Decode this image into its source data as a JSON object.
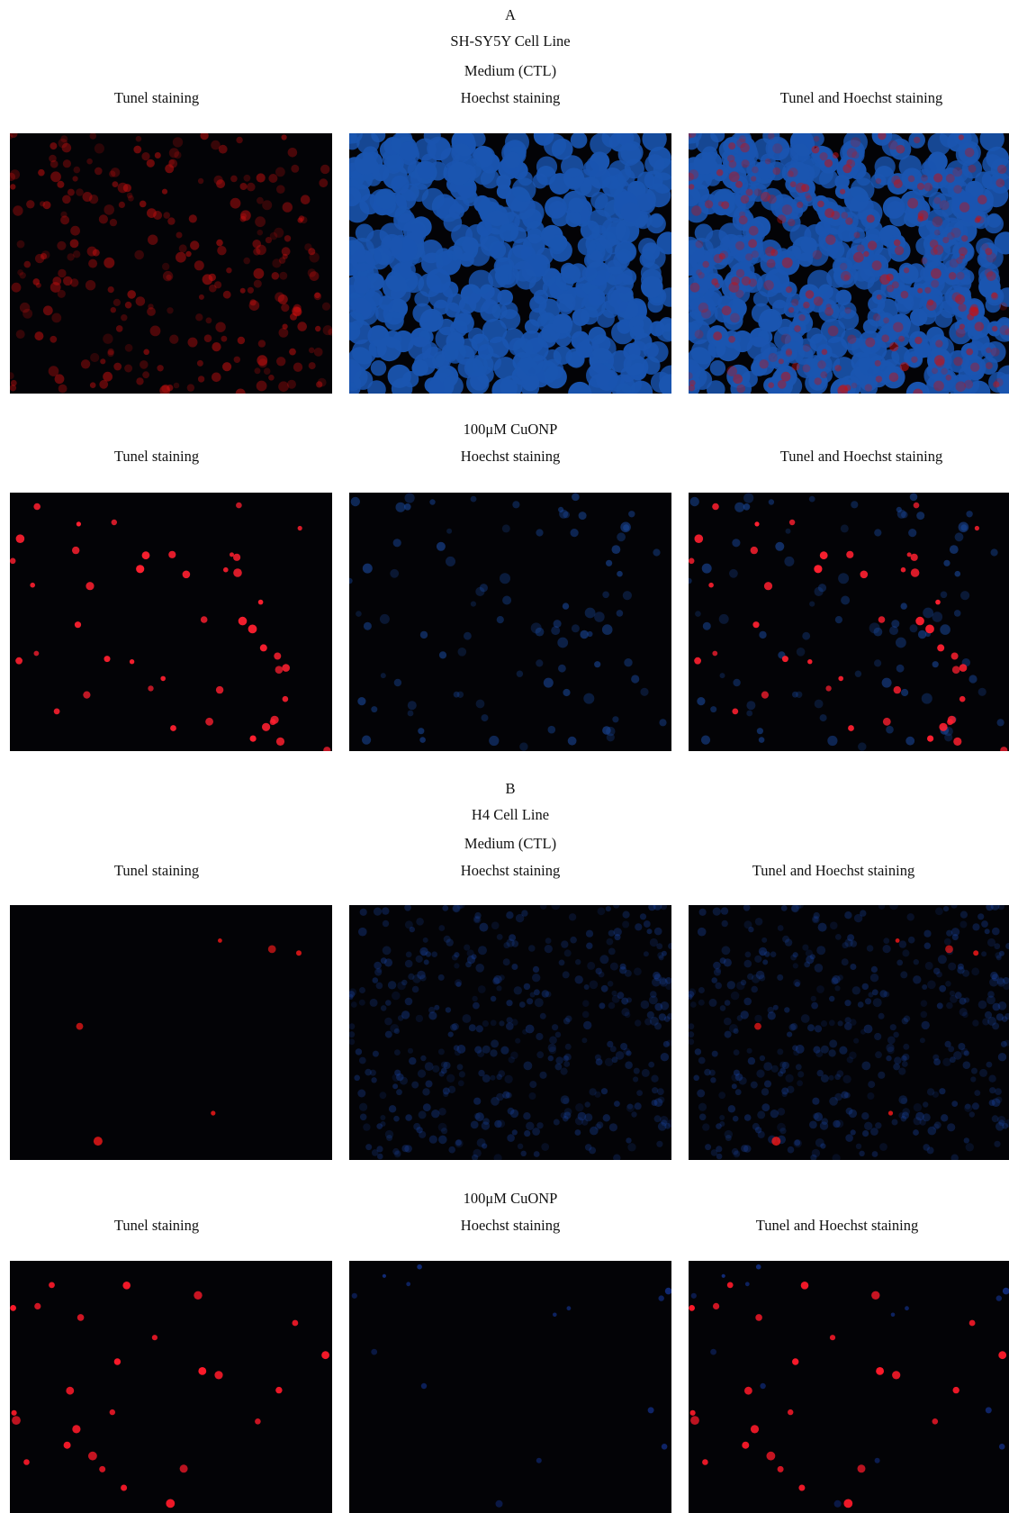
{
  "sections": [
    {
      "label": "A",
      "cell_line": "SH-SY5Y Cell Line",
      "rows": [
        {
          "condition": "Medium (CTL)",
          "columns": [
            "Tunel staining",
            "Hoechst staining",
            "Tunel and Hoechst staining"
          ]
        },
        {
          "condition": "100μM CuONP",
          "columns": [
            "Tunel staining",
            "Hoechst staining",
            "Tunel and Hoechst staining"
          ]
        }
      ]
    },
    {
      "label": "B",
      "cell_line": "H4 Cell Line",
      "rows": [
        {
          "condition": "Medium (CTL)",
          "columns": [
            "Tunel staining",
            "Hoechst staining",
            "Tunel and Hoechst staining"
          ]
        },
        {
          "condition": "100μM CuONP",
          "columns": [
            "Tunel staining",
            "Hoechst staining",
            "Tunel and Hoechst staining"
          ]
        }
      ]
    }
  ]
}
